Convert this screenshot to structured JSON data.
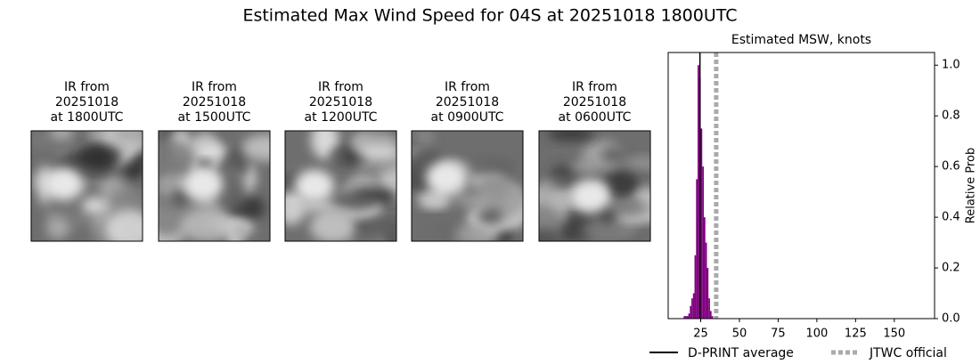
{
  "title": "Estimated Max Wind Speed for 04S at 20251018 1800UTC",
  "panels": [
    {
      "lines": [
        "IR from",
        "20251018",
        "at 1800UTC"
      ]
    },
    {
      "lines": [
        "IR from",
        "20251018",
        "at 1500UTC"
      ]
    },
    {
      "lines": [
        "IR from",
        "20251018",
        "at 1200UTC"
      ]
    },
    {
      "lines": [
        "IR from",
        "20251018",
        "at 0900UTC"
      ]
    },
    {
      "lines": [
        "IR from",
        "20251018",
        "at 0600UTC"
      ]
    }
  ],
  "chart_data": {
    "type": "histogram",
    "title": "Estimated MSW, knots",
    "y_label": "Relative Prob",
    "bins": [
      14,
      15,
      16,
      17,
      18,
      19,
      20,
      21,
      22,
      23,
      24,
      25,
      26,
      27,
      28,
      29,
      30,
      31,
      32,
      33
    ],
    "counts": [
      0.01,
      0.01,
      0.01,
      0.02,
      0.05,
      0.08,
      0.1,
      0.25,
      0.55,
      1.0,
      0.95,
      0.75,
      0.6,
      0.4,
      0.3,
      0.2,
      0.08,
      0.03,
      0.01
    ],
    "color": "#800080",
    "xlim": [
      4,
      176
    ],
    "xticks": [
      25,
      50,
      75,
      100,
      125,
      150
    ],
    "ylim": [
      0,
      1.05
    ],
    "yticks": [
      {
        "value": 0,
        "label": "0.0"
      },
      0.2,
      0.4,
      0.6,
      0.8,
      {
        "value": 1,
        "label": "1.0"
      }
    ],
    "lines": [
      {
        "name": "D-PRINT average",
        "x": 24.5,
        "color": "#000000",
        "dashed": false
      },
      {
        "name": "JTWC official",
        "x": 35,
        "color": "#aaaaaa",
        "dashed": true
      }
    ]
  }
}
